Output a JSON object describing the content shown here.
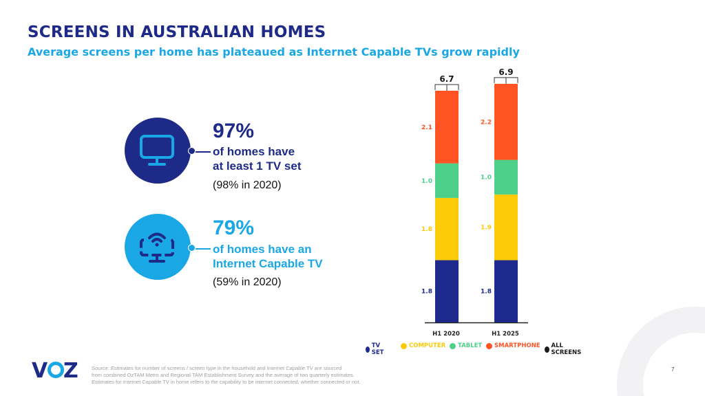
{
  "header": {
    "title": "SCREENS IN AUSTRALIAN HOMES",
    "subtitle": "Average screens per home has plateaued as Internet Capable TVs grow rapidly"
  },
  "stats": [
    {
      "icon": "tv-icon",
      "value": "97%",
      "line1": "of homes have",
      "line2": "at least 1 TV set",
      "note": "(98% in 2020)",
      "color": "#1e2a87"
    },
    {
      "icon": "internet-tv-icon",
      "value": "79%",
      "line1": "of homes have an",
      "line2": "Internet Capable TV",
      "note": "(59% in 2020)",
      "color": "#1aa7e6"
    }
  ],
  "chart_data": {
    "type": "bar",
    "stacked": true,
    "categories": [
      "H1 2020",
      "H1 2025"
    ],
    "series": [
      {
        "name": "TV SET",
        "color": "#1f2a8f",
        "values": [
          1.8,
          1.8
        ]
      },
      {
        "name": "COMPUTER",
        "color": "#fbcb0a",
        "values": [
          1.8,
          1.9
        ]
      },
      {
        "name": "TABLET",
        "color": "#4dd08a",
        "values": [
          1.0,
          1.0
        ]
      },
      {
        "name": "SMARTPHONE",
        "color": "#ff5323",
        "values": [
          2.1,
          2.2
        ]
      }
    ],
    "totals": {
      "name": "ALL SCREENS",
      "color": "#1a1a1a",
      "values": [
        6.7,
        6.9
      ]
    },
    "legend_position": "bottom",
    "grid": false
  },
  "footer": {
    "logo": "VOZ",
    "source": [
      "Source: Estimates for number of screens / screen type in the household and Internet Capable TV are sourced",
      "from combined OzTAM Metro and Regional TAM Establishment Survey and the average of two quarterly estimates.",
      "Estimates for Internet Capable TV in home refers to the capability to be internet connected, whether connected or not."
    ],
    "page": "7"
  }
}
